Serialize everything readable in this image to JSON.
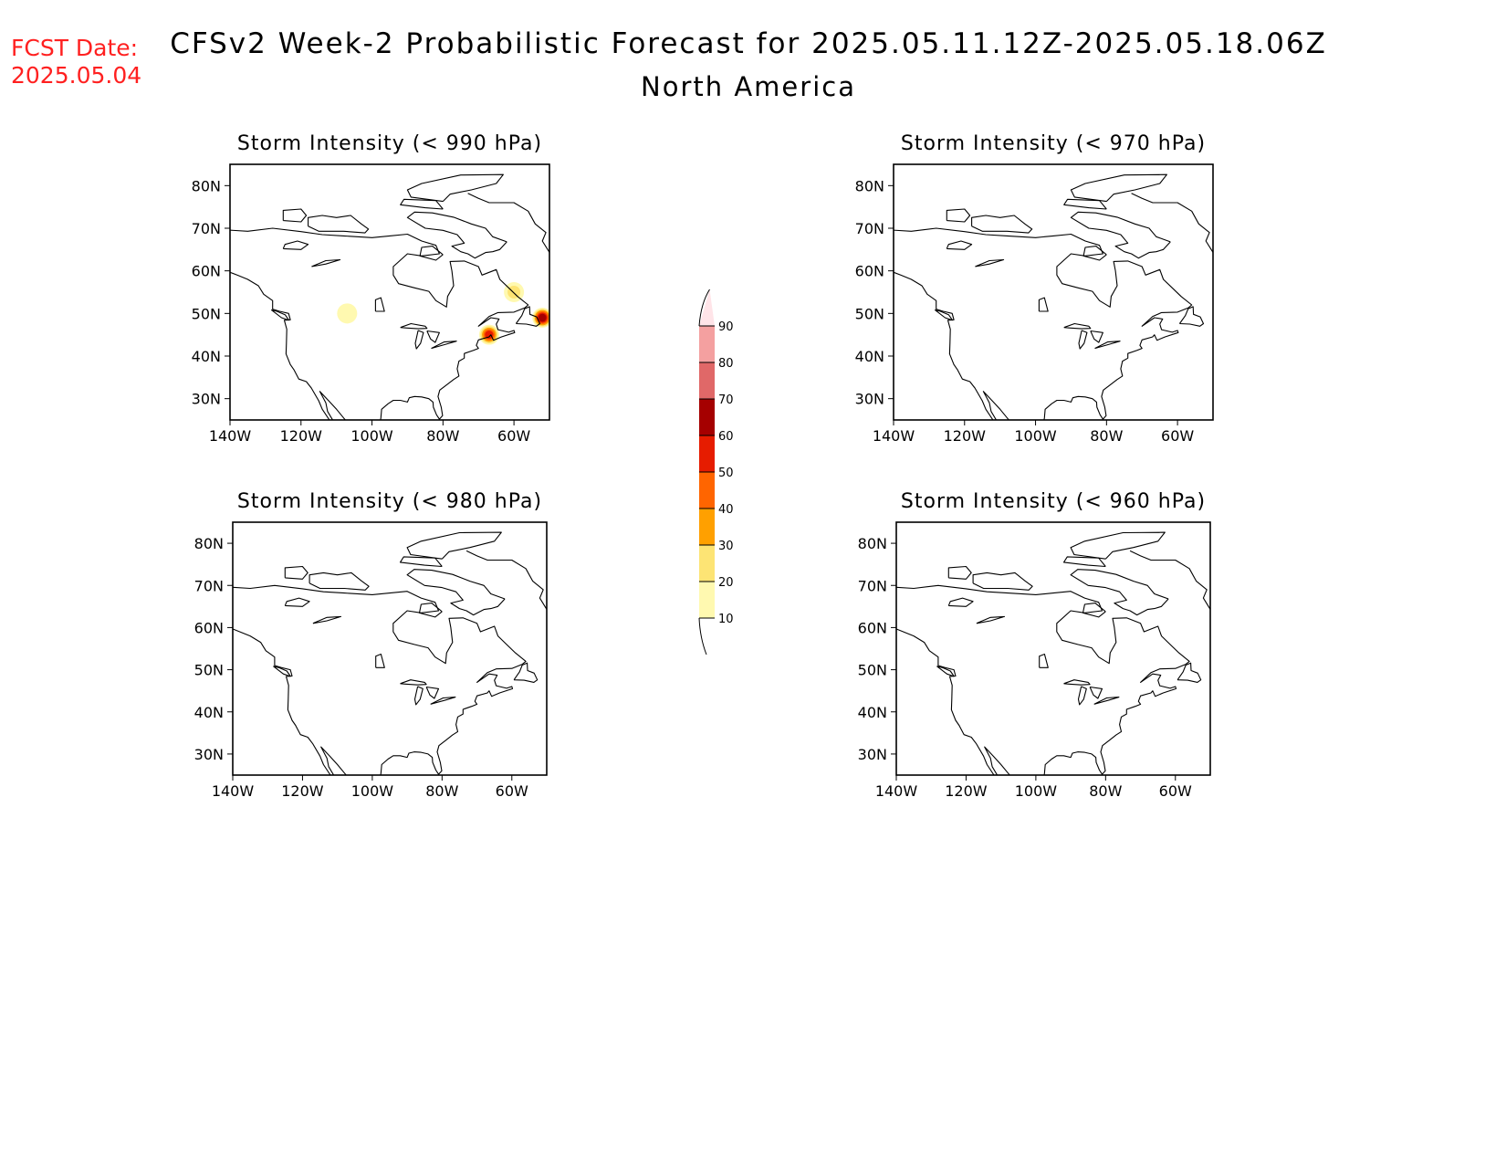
{
  "header": {
    "fcst_line1": "FCST Date:",
    "fcst_line2": "2025.05.04",
    "title": "CFSv2 Week-2 Probabilistic Forecast for 2025.05.11.12Z-2025.05.18.06Z",
    "subtitle": "North America"
  },
  "map_axes": {
    "lon_ticks": [
      "140W",
      "120W",
      "100W",
      "80W",
      "60W"
    ],
    "lat_ticks": [
      "80N",
      "70N",
      "60N",
      "50N",
      "40N",
      "30N"
    ]
  },
  "panels": [
    {
      "title": "Storm Intensity (< 990 hPa)",
      "has_probabilities": true
    },
    {
      "title": "Storm Intensity (< 970 hPa)",
      "has_probabilities": false
    },
    {
      "title": "Storm Intensity (< 980 hPa)",
      "has_probabilities": false
    },
    {
      "title": "Storm Intensity (< 960 hPa)",
      "has_probabilities": false
    }
  ],
  "probability_areas_990": [
    {
      "region": "northern plains",
      "lon": -107,
      "lat": 50,
      "prob": 15
    },
    {
      "region": "Labrador",
      "lon": -60,
      "lat": 55,
      "prob": 20
    },
    {
      "region": "Gulf of Maine / Nova Scotia",
      "lon": -67,
      "lat": 45,
      "prob": 50
    },
    {
      "region": "Newfoundland",
      "lon": -52,
      "lat": 49,
      "prob": 60
    }
  ],
  "colorbar": {
    "levels": [
      "10",
      "20",
      "30",
      "40",
      "50",
      "60",
      "70",
      "80",
      "90"
    ],
    "colors": [
      "#fff9b0",
      "#fde474",
      "#ffa000",
      "#ff6500",
      "#e61c00",
      "#a50000",
      "#e06868",
      "#f4a0a0",
      "#ffe4e8"
    ]
  }
}
